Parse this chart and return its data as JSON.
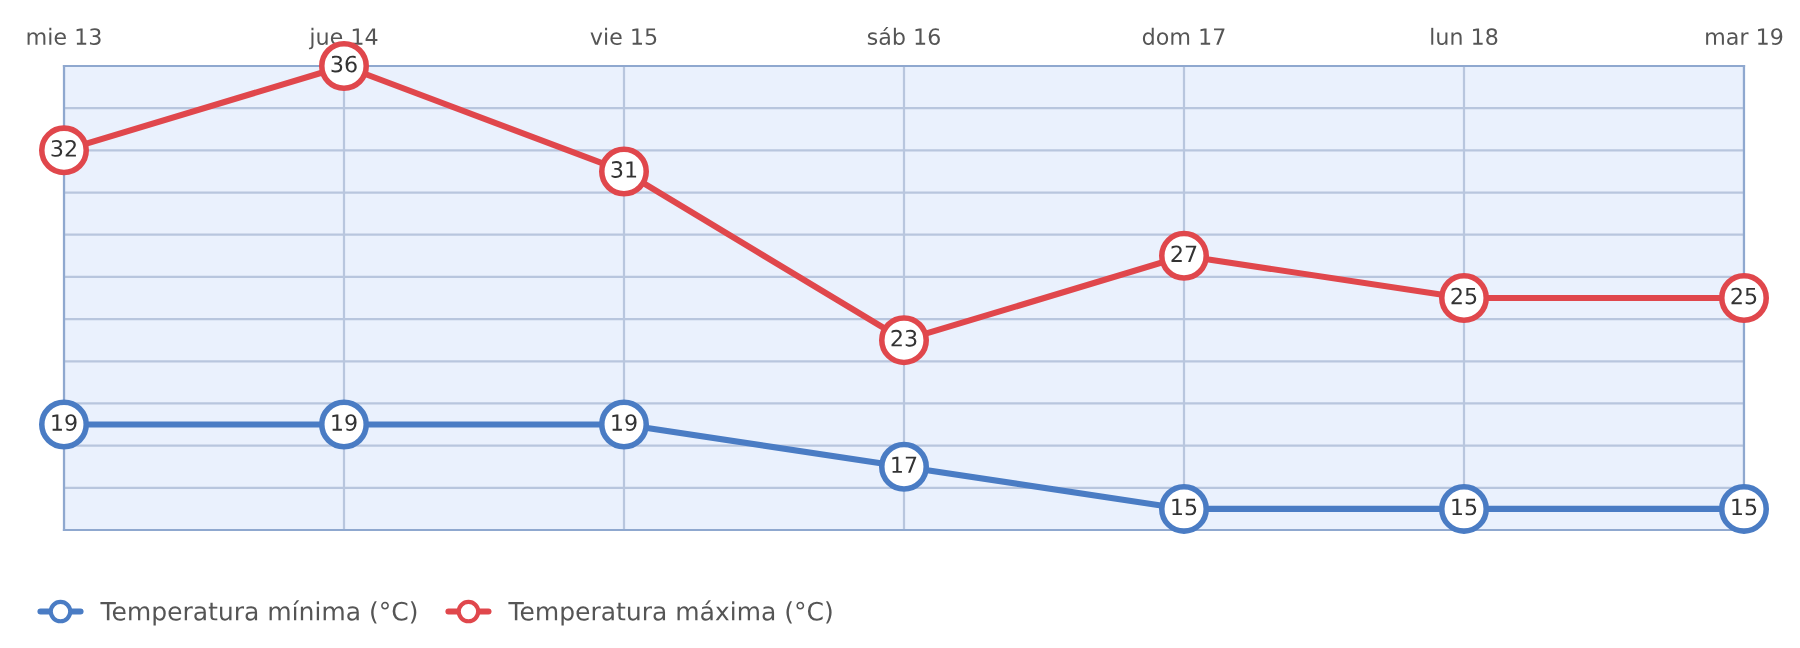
{
  "chart_data": {
    "type": "line",
    "categories": [
      "mie 13",
      "jue 14",
      "vie 15",
      "sáb 16",
      "dom 17",
      "lun 18",
      "mar 19"
    ],
    "series": [
      {
        "name": "Temperatura mínima (°C)",
        "color": "#4a7cc4",
        "values": [
          19,
          19,
          19,
          17,
          15,
          15,
          15
        ]
      },
      {
        "name": "Temperatura máxima (°C)",
        "color": "#e0474c",
        "values": [
          32,
          36,
          31,
          23,
          27,
          25,
          25
        ]
      }
    ],
    "ylim": [
      14,
      36
    ],
    "yticks": [
      {
        "value": 14,
        "label": null
      },
      {
        "value": 16,
        "label": null
      },
      {
        "value": 18,
        "label": null
      },
      {
        "value": 20,
        "label": null
      },
      {
        "value": 22,
        "label": null
      },
      {
        "value": 24,
        "label": null
      },
      {
        "value": 26,
        "label": null
      },
      {
        "value": 28,
        "label": null
      },
      {
        "value": 30,
        "label": null
      },
      {
        "value": 32,
        "label": null
      },
      {
        "value": 34,
        "label": null
      },
      {
        "value": 36,
        "label": null
      }
    ],
    "tick_labels": "x",
    "grid": true,
    "data_labels": true,
    "marker": "circle",
    "line_style": "solid",
    "legend": "bottom left"
  }
}
